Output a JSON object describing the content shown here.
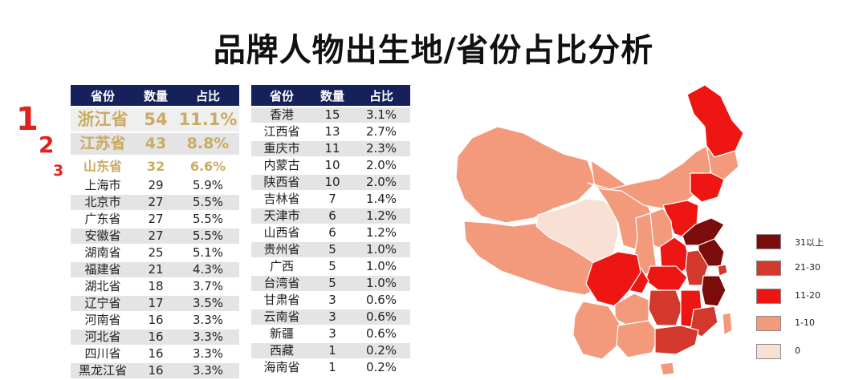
{
  "title": "品牌人物出生地/省份占比分析",
  "headers": {
    "province": "省份",
    "count": "数量",
    "ratio": "占比"
  },
  "ranks": [
    "1",
    "2",
    "3"
  ],
  "chart_data": [
    {
      "type": "table",
      "columns": [
        "省份",
        "数量",
        "占比"
      ],
      "rows": [
        {
          "province": "浙江省",
          "count": "54",
          "ratio": "11.1%"
        },
        {
          "province": "江苏省",
          "count": "43",
          "ratio": "8.8%"
        },
        {
          "province": "山东省",
          "count": "32",
          "ratio": "6.6%"
        },
        {
          "province": "上海市",
          "count": "29",
          "ratio": "5.9%"
        },
        {
          "province": "北京市",
          "count": "27",
          "ratio": "5.5%"
        },
        {
          "province": "广东省",
          "count": "27",
          "ratio": "5.5%"
        },
        {
          "province": "安徽省",
          "count": "27",
          "ratio": "5.5%"
        },
        {
          "province": "湖南省",
          "count": "25",
          "ratio": "5.1%"
        },
        {
          "province": "福建省",
          "count": "21",
          "ratio": "4.3%"
        },
        {
          "province": "湖北省",
          "count": "18",
          "ratio": "3.7%"
        },
        {
          "province": "辽宁省",
          "count": "17",
          "ratio": "3.5%"
        },
        {
          "province": "河南省",
          "count": "16",
          "ratio": "3.3%"
        },
        {
          "province": "河北省",
          "count": "16",
          "ratio": "3.3%"
        },
        {
          "province": "四川省",
          "count": "16",
          "ratio": "3.3%"
        },
        {
          "province": "黑龙江省",
          "count": "16",
          "ratio": "3.3%"
        }
      ]
    },
    {
      "type": "table",
      "columns": [
        "省份",
        "数量",
        "占比"
      ],
      "rows": [
        {
          "province": "香港",
          "count": "15",
          "ratio": "3.1%"
        },
        {
          "province": "江西省",
          "count": "13",
          "ratio": "2.7%"
        },
        {
          "province": "重庆市",
          "count": "11",
          "ratio": "2.3%"
        },
        {
          "province": "内蒙古",
          "count": "10",
          "ratio": "2.0%"
        },
        {
          "province": "陕西省",
          "count": "10",
          "ratio": "2.0%"
        },
        {
          "province": "吉林省",
          "count": "7",
          "ratio": "1.4%"
        },
        {
          "province": "天津市",
          "count": "6",
          "ratio": "1.2%"
        },
        {
          "province": "山西省",
          "count": "6",
          "ratio": "1.2%"
        },
        {
          "province": "贵州省",
          "count": "5",
          "ratio": "1.0%"
        },
        {
          "province": "广西",
          "count": "5",
          "ratio": "1.0%"
        },
        {
          "province": "台湾省",
          "count": "5",
          "ratio": "1.0%"
        },
        {
          "province": "甘肃省",
          "count": "3",
          "ratio": "0.6%"
        },
        {
          "province": "云南省",
          "count": "3",
          "ratio": "0.6%"
        },
        {
          "province": "新疆",
          "count": "3",
          "ratio": "0.6%"
        },
        {
          "province": "西藏",
          "count": "1",
          "ratio": "0.2%"
        },
        {
          "province": "海南省",
          "count": "1",
          "ratio": "0.2%"
        }
      ]
    },
    {
      "type": "heatmap",
      "legend": [
        {
          "label": "31以上",
          "color": "#7a0d0b"
        },
        {
          "label": "21-30",
          "color": "#d2382c"
        },
        {
          "label": "11-20",
          "color": "#ee1612"
        },
        {
          "label": "1-10",
          "color": "#f39a7c"
        },
        {
          "label": "0",
          "color": "#f9e0d4"
        }
      ],
      "regions": [
        {
          "name": "新疆",
          "bin": "1-10"
        },
        {
          "name": "西藏",
          "bin": "1-10"
        },
        {
          "name": "青海",
          "bin": "0"
        },
        {
          "name": "甘肃",
          "bin": "1-10"
        },
        {
          "name": "内蒙古",
          "bin": "1-10"
        },
        {
          "name": "黑龙江",
          "bin": "11-20"
        },
        {
          "name": "吉林",
          "bin": "1-10"
        },
        {
          "name": "辽宁",
          "bin": "11-20"
        },
        {
          "name": "河北",
          "bin": "11-20"
        },
        {
          "name": "山东",
          "bin": "31以上"
        },
        {
          "name": "江苏",
          "bin": "31以上"
        },
        {
          "name": "浙江",
          "bin": "31以上"
        },
        {
          "name": "上海",
          "bin": "21-30"
        },
        {
          "name": "安徽",
          "bin": "21-30"
        },
        {
          "name": "河南",
          "bin": "11-20"
        },
        {
          "name": "山西",
          "bin": "1-10"
        },
        {
          "name": "陕西",
          "bin": "1-10"
        },
        {
          "name": "四川",
          "bin": "11-20"
        },
        {
          "name": "重庆",
          "bin": "11-20"
        },
        {
          "name": "湖北",
          "bin": "11-20"
        },
        {
          "name": "湖南",
          "bin": "21-30"
        },
        {
          "name": "江西",
          "bin": "11-20"
        },
        {
          "name": "福建",
          "bin": "21-30"
        },
        {
          "name": "广东",
          "bin": "21-30"
        },
        {
          "name": "广西",
          "bin": "1-10"
        },
        {
          "name": "贵州",
          "bin": "1-10"
        },
        {
          "name": "云南",
          "bin": "1-10"
        },
        {
          "name": "海南",
          "bin": "1-10"
        },
        {
          "name": "台湾",
          "bin": "1-10"
        }
      ]
    }
  ]
}
